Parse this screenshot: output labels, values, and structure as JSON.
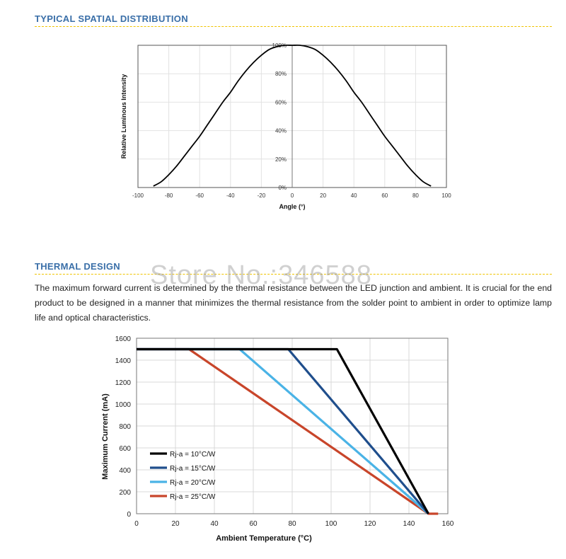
{
  "sections": {
    "spatial_title": "TYPICAL SPATIAL DISTRIBUTION",
    "thermal_title": "THERMAL DESIGN",
    "thermal_text": "The maximum forward current is determined by the thermal resistance between the LED junction and ambient. It is crucial for the end product to be designed in a manner that minimizes the thermal resistance from the solder point to ambient in order to optimize lamp life and optical characteristics.",
    "watermark": "Store No.:346588"
  },
  "colors": {
    "accent_title": "#3a6fa8",
    "divider": "#f0c400"
  },
  "chart_data": [
    {
      "type": "line",
      "xlabel": "Angle (°)",
      "ylabel": "Relative Luminous Intensity",
      "xlim": [
        -100,
        100
      ],
      "ylim": [
        0,
        100
      ],
      "xticks": [
        "-100",
        "-80",
        "-60",
        "-40",
        "-20",
        "0",
        "20",
        "40",
        "60",
        "80",
        "100"
      ],
      "yticks": [
        "0%",
        "20%",
        "40%",
        "60%",
        "80%",
        "100%"
      ],
      "grid": true,
      "series": [
        {
          "color": "#000000",
          "x": [
            -90,
            -85,
            -80,
            -75,
            -70,
            -65,
            -60,
            -55,
            -50,
            -45,
            -40,
            -35,
            -30,
            -25,
            -20,
            -15,
            -10,
            -5,
            0,
            5,
            10,
            15,
            20,
            25,
            30,
            35,
            40,
            45,
            50,
            55,
            60,
            65,
            70,
            75,
            80,
            85,
            90
          ],
          "y": [
            1,
            4,
            9,
            15,
            22,
            29,
            36,
            44,
            52,
            60,
            67,
            75,
            82,
            88,
            93,
            97,
            99,
            100,
            100,
            100,
            99,
            97,
            93,
            88,
            82,
            75,
            67,
            60,
            52,
            44,
            36,
            29,
            22,
            15,
            9,
            4,
            1
          ]
        }
      ]
    },
    {
      "type": "line",
      "xlabel": "Ambient Temperature (°C)",
      "ylabel": "Maximum Current (mA)",
      "xlim": [
        0,
        160
      ],
      "ylim": [
        0,
        1600
      ],
      "xticks": [
        "0",
        "20",
        "40",
        "60",
        "80",
        "100",
        "120",
        "140",
        "160"
      ],
      "yticks": [
        "0",
        "200",
        "400",
        "600",
        "800",
        "1000",
        "1200",
        "1400",
        "1600"
      ],
      "grid": true,
      "legend_position": "bottom-left",
      "series": [
        {
          "name": "Rj-a = 10°C/W",
          "color": "#000000",
          "x": [
            0,
            103,
            150
          ],
          "y": [
            1500,
            1500,
            0
          ]
        },
        {
          "name": "Rj-a = 15°C/W",
          "color": "#1f4e8c",
          "x": [
            0,
            78,
            150
          ],
          "y": [
            1500,
            1500,
            0
          ]
        },
        {
          "name": "Rj-a = 20°C/W",
          "color": "#4ab3e6",
          "x": [
            0,
            53,
            150
          ],
          "y": [
            1500,
            1500,
            0
          ]
        },
        {
          "name": "Rj-a = 25°C/W",
          "color": "#c8452a",
          "x": [
            0,
            27,
            150,
            155
          ],
          "y": [
            1500,
            1500,
            0,
            0
          ]
        }
      ]
    }
  ]
}
